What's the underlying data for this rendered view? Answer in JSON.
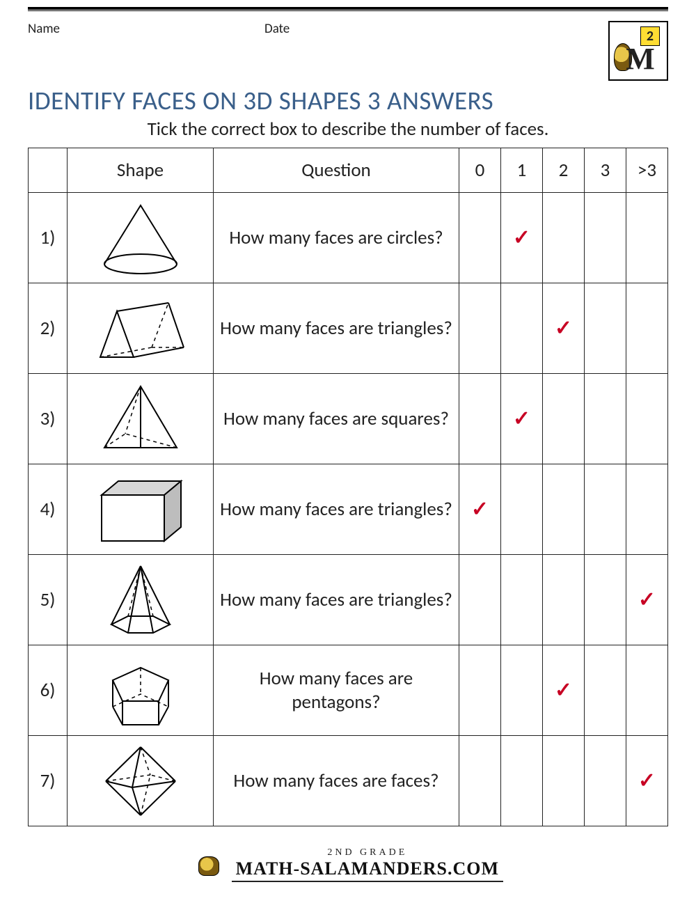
{
  "header": {
    "name_label": "Name",
    "date_label": "Date",
    "logo_digit": "2"
  },
  "title": "IDENTIFY FACES ON 3D SHAPES 3 ANSWERS",
  "subtitle": "Tick the correct box to describe the number of faces.",
  "columns": {
    "shape": "Shape",
    "question": "Question",
    "answers": [
      "0",
      "1",
      "2",
      "3",
      ">3"
    ]
  },
  "tick_glyph": "✓",
  "tick_color": "#c70023",
  "title_color": "#3a5f8a",
  "rows": [
    {
      "num": "1)",
      "shape": "cone",
      "question": "How many faces are circles?",
      "answer_index": 1
    },
    {
      "num": "2)",
      "shape": "triangular-prism",
      "question": "How many faces are triangles?",
      "answer_index": 2
    },
    {
      "num": "3)",
      "shape": "square-pyramid",
      "question": "How many faces are squares?",
      "answer_index": 1
    },
    {
      "num": "4)",
      "shape": "cuboid",
      "question": "How many faces are triangles?",
      "answer_index": 0
    },
    {
      "num": "5)",
      "shape": "hexagonal-pyramid",
      "question": "How many faces are triangles?",
      "answer_index": 4
    },
    {
      "num": "6)",
      "shape": "pentagonal-prism",
      "question": "How many faces are pentagons?",
      "answer_index": 2
    },
    {
      "num": "7)",
      "shape": "octahedron",
      "question": "How many faces are faces?",
      "answer_index": 4
    }
  ],
  "footer": {
    "line1": "2ND GRADE",
    "brand": "MATH-SALAMANDERS.COM"
  }
}
